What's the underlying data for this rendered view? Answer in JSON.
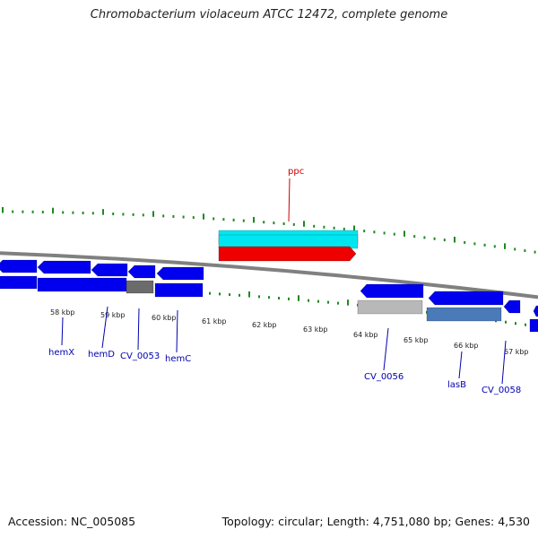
{
  "title": "Chromobacterium violaceum ATCC 12472, complete genome",
  "footer": {
    "accession": "Accession: NC_005085",
    "summary": "Topology: circular; Length: 4,751,080 bp; Genes: 4,530"
  },
  "colors": {
    "backbone": "#808080",
    "tick": "#1e8a1e",
    "cds_blue": "#0000ee",
    "gene_label": "#0000b0",
    "highlight_label": "#cc0000",
    "highlight_cds": "#00e6f0",
    "highlight_gene": "#ee0000",
    "gray_feature": "#b8b8b8",
    "steel_feature": "#4a7ab8"
  },
  "scale_labels": [
    "58 kbp",
    "59 kbp",
    "60 kbp",
    "61 kbp",
    "62 kbp",
    "63 kbp",
    "64 kbp",
    "65 kbp",
    "66 kbp",
    "67 kbp"
  ],
  "gene_labels": [
    {
      "text": "ppc",
      "color": "highlight"
    },
    {
      "text": "hemX",
      "color": "normal"
    },
    {
      "text": "hemD",
      "color": "normal"
    },
    {
      "text": "CV_0053",
      "color": "normal"
    },
    {
      "text": "hemC",
      "color": "normal"
    },
    {
      "text": "CV_0056",
      "color": "normal"
    },
    {
      "text": "lasB",
      "color": "normal"
    },
    {
      "text": "CV_0058",
      "color": "normal"
    }
  ]
}
